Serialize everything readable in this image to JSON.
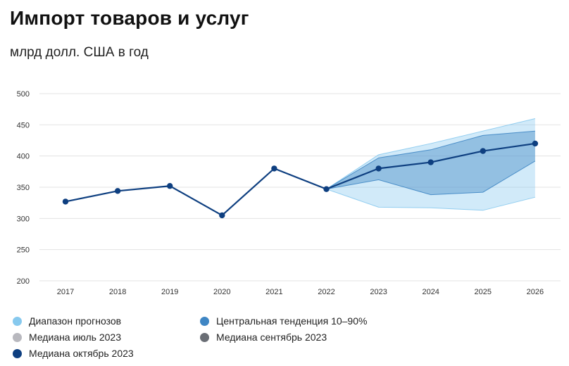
{
  "title": "Импорт товаров и услуг",
  "subtitle": "млрд долл. США в год",
  "legend": {
    "range": "Диапазон прогнозов",
    "central": "Центральная тенденция 10–90%",
    "median_july": "Медиана июль 2023",
    "median_sep": "Медиана сентябрь 2023",
    "median_oct": "Медиана октябрь 2023"
  },
  "colors": {
    "range": "#87c9ee",
    "central": "#3f86c4",
    "median_july": "#b8b8be",
    "median_sep": "#6a6e75",
    "median_oct": "#0e3f80",
    "grid": "#e3e3e3"
  },
  "chart_data": {
    "type": "line",
    "x": [
      "2017",
      "2018",
      "2019",
      "2020",
      "2021",
      "2022",
      "2023",
      "2024",
      "2025",
      "2026"
    ],
    "ylim": [
      200,
      500
    ],
    "yticks": [
      "200",
      "250",
      "300",
      "350",
      "400",
      "450",
      "500"
    ],
    "grid": true,
    "series": [
      {
        "name": "Медиана октябрь 2023",
        "values": [
          327,
          344,
          352,
          305,
          380,
          347,
          380,
          390,
          408,
          420
        ]
      }
    ],
    "bands": [
      {
        "name": "Диапазон прогнозов",
        "x": [
          "2022",
          "2023",
          "2024",
          "2025",
          "2026"
        ],
        "upper": [
          347,
          402,
          420,
          440,
          460
        ],
        "lower": [
          347,
          318,
          317,
          313,
          334
        ]
      },
      {
        "name": "Центральная тенденция 10–90%",
        "x": [
          "2022",
          "2023",
          "2024",
          "2025",
          "2026"
        ],
        "upper": [
          347,
          397,
          410,
          433,
          440
        ],
        "lower": [
          347,
          362,
          338,
          342,
          392
        ]
      }
    ]
  }
}
